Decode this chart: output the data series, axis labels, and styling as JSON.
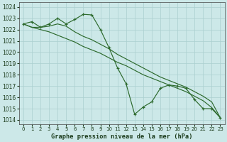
{
  "title": "Graphe pression niveau de la mer (hPa)",
  "background_color": "#cce8e8",
  "grid_color": "#aacfcf",
  "line_color": "#2d6a2d",
  "xlim": [
    -0.5,
    23.5
  ],
  "ylim": [
    1013.6,
    1024.4
  ],
  "yticks": [
    1014,
    1015,
    1016,
    1017,
    1018,
    1019,
    1020,
    1021,
    1022,
    1023,
    1024
  ],
  "xticks": [
    0,
    1,
    2,
    3,
    4,
    5,
    6,
    7,
    8,
    9,
    10,
    11,
    12,
    13,
    14,
    15,
    16,
    17,
    18,
    19,
    20,
    21,
    22,
    23
  ],
  "y_main": [
    1022.5,
    1022.7,
    1022.2,
    1022.5,
    1023.0,
    1022.5,
    1022.9,
    1023.35,
    1023.3,
    1022.0,
    1020.4,
    1018.6,
    1017.2,
    1014.5,
    1015.15,
    1015.6,
    1016.8,
    1017.1,
    1017.0,
    1016.8,
    1015.8,
    1015.0,
    1015.0,
    1014.2
  ],
  "y_upper": [
    1022.5,
    1022.2,
    1022.2,
    1022.3,
    1022.5,
    1022.3,
    1021.8,
    1021.4,
    1021.1,
    1020.7,
    1020.3,
    1019.8,
    1019.4,
    1019.0,
    1018.6,
    1018.2,
    1017.8,
    1017.5,
    1017.2,
    1016.9,
    1016.5,
    1016.1,
    1015.6,
    1014.2
  ],
  "y_lower": [
    1022.5,
    1022.2,
    1022.0,
    1021.8,
    1021.5,
    1021.2,
    1020.9,
    1020.5,
    1020.2,
    1019.9,
    1019.5,
    1019.1,
    1018.8,
    1018.4,
    1018.0,
    1017.7,
    1017.4,
    1017.1,
    1016.8,
    1016.5,
    1016.1,
    1015.7,
    1015.1,
    1014.2
  ]
}
